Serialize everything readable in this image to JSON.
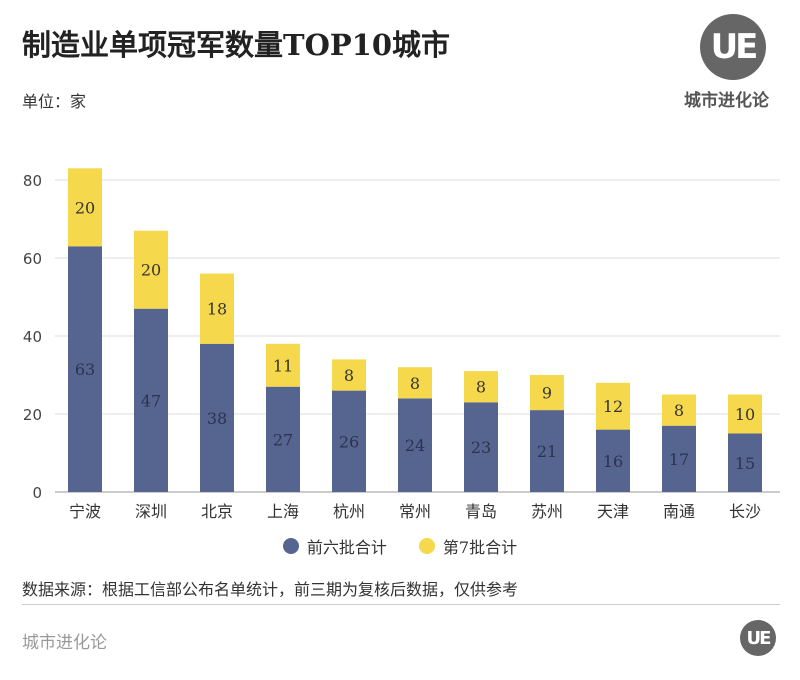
{
  "header": {
    "title": "制造业单项冠军数量TOP10城市",
    "unit": "单位：家",
    "logo_text": "城市进化论",
    "logo_mark": "UE"
  },
  "chart_data": {
    "type": "bar",
    "stacked": true,
    "categories": [
      "宁波",
      "深圳",
      "北京",
      "上海",
      "杭州",
      "常州",
      "青岛",
      "苏州",
      "天津",
      "南通",
      "长沙"
    ],
    "series": [
      {
        "name": "前六批合计",
        "color": "#56658f",
        "values": [
          63,
          47,
          38,
          27,
          26,
          24,
          23,
          21,
          16,
          17,
          15
        ]
      },
      {
        "name": "第7批合计",
        "color": "#f6d84c",
        "values": [
          20,
          20,
          18,
          11,
          8,
          8,
          8,
          9,
          12,
          8,
          10
        ]
      }
    ],
    "ylim": [
      0,
      80
    ],
    "yticks": [
      0,
      20,
      40,
      60,
      80
    ],
    "grid": true,
    "legend": "bottom"
  },
  "footer": {
    "source": "数据来源：根据工信部公布名单统计，前三期为复核后数据，仅供参考",
    "brand": "城市进化论",
    "logo_mark": "UE"
  }
}
